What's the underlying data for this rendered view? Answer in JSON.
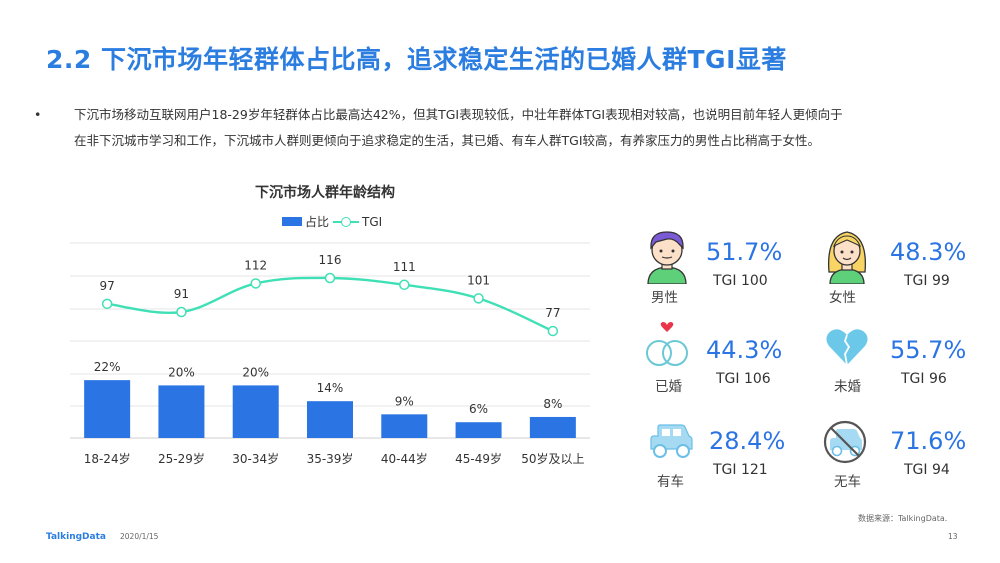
{
  "page": {
    "title": "2.2 下沉市场年轻群体占比高，追求稳定生活的已婚人群TGI显著",
    "bullet_symbol": "•",
    "bullet_lines": [
      "下沉市场移动互联网用户18-29岁年轻群体占比最高达42%，但其TGI表现较低，中壮年群体TGI表现相对较高，也说明目前年轻人更倾向于",
      "在非下沉城市学习和工作，下沉城市人群则更倾向于追求稳定的生活，其已婚、有车人群TGI较高，有养家压力的男性占比稍高于女性。"
    ]
  },
  "chart_data": {
    "type": "bar",
    "title": "下沉市场人群年龄结构",
    "categories": [
      "18-24岁",
      "25-29岁",
      "30-34岁",
      "35-39岁",
      "40-44岁",
      "45-49岁",
      "50岁及以上"
    ],
    "series": [
      {
        "name": "占比",
        "type": "bar",
        "values": [
          22,
          20,
          20,
          14,
          9,
          6,
          8
        ],
        "labels": [
          "22%",
          "20%",
          "20%",
          "14%",
          "9%",
          "6%",
          "8%"
        ],
        "color": "#2a74e3"
      },
      {
        "name": "TGI",
        "type": "line",
        "values": [
          97,
          91,
          112,
          116,
          111,
          101,
          77
        ],
        "color": "#3fe0b5"
      }
    ],
    "grid": true,
    "legend": "top"
  },
  "stats": [
    {
      "id": "male",
      "label": "男性",
      "pct": "51.7%",
      "tgi": "TGI 100",
      "icon": "male-person-icon"
    },
    {
      "id": "female",
      "label": "女性",
      "pct": "48.3%",
      "tgi": "TGI 99",
      "icon": "female-person-icon"
    },
    {
      "id": "married",
      "label": "已婚",
      "pct": "44.3%",
      "tgi": "TGI 106",
      "icon": "wedding-rings-icon"
    },
    {
      "id": "unmarried",
      "label": "未婚",
      "pct": "55.7%",
      "tgi": "TGI 96",
      "icon": "heart-icon"
    },
    {
      "id": "car",
      "label": "有车",
      "pct": "28.4%",
      "tgi": "TGI 121",
      "icon": "car-icon"
    },
    {
      "id": "nocar",
      "label": "无车",
      "pct": "71.6%",
      "tgi": "TGI 94",
      "icon": "no-car-icon"
    }
  ],
  "colors": {
    "accent": "#2b7de0",
    "bar": "#2a74e3",
    "line": "#3fe0b5",
    "skin": "#fde0c8",
    "shirt": "#5fd07a",
    "hair_male": "#7b5ad6",
    "hair_female": "#f7d463"
  },
  "footer": {
    "source": "数据来源：TalkingData.",
    "brand": "TalkingData",
    "date": "2020/1/15",
    "page_number": "13"
  }
}
